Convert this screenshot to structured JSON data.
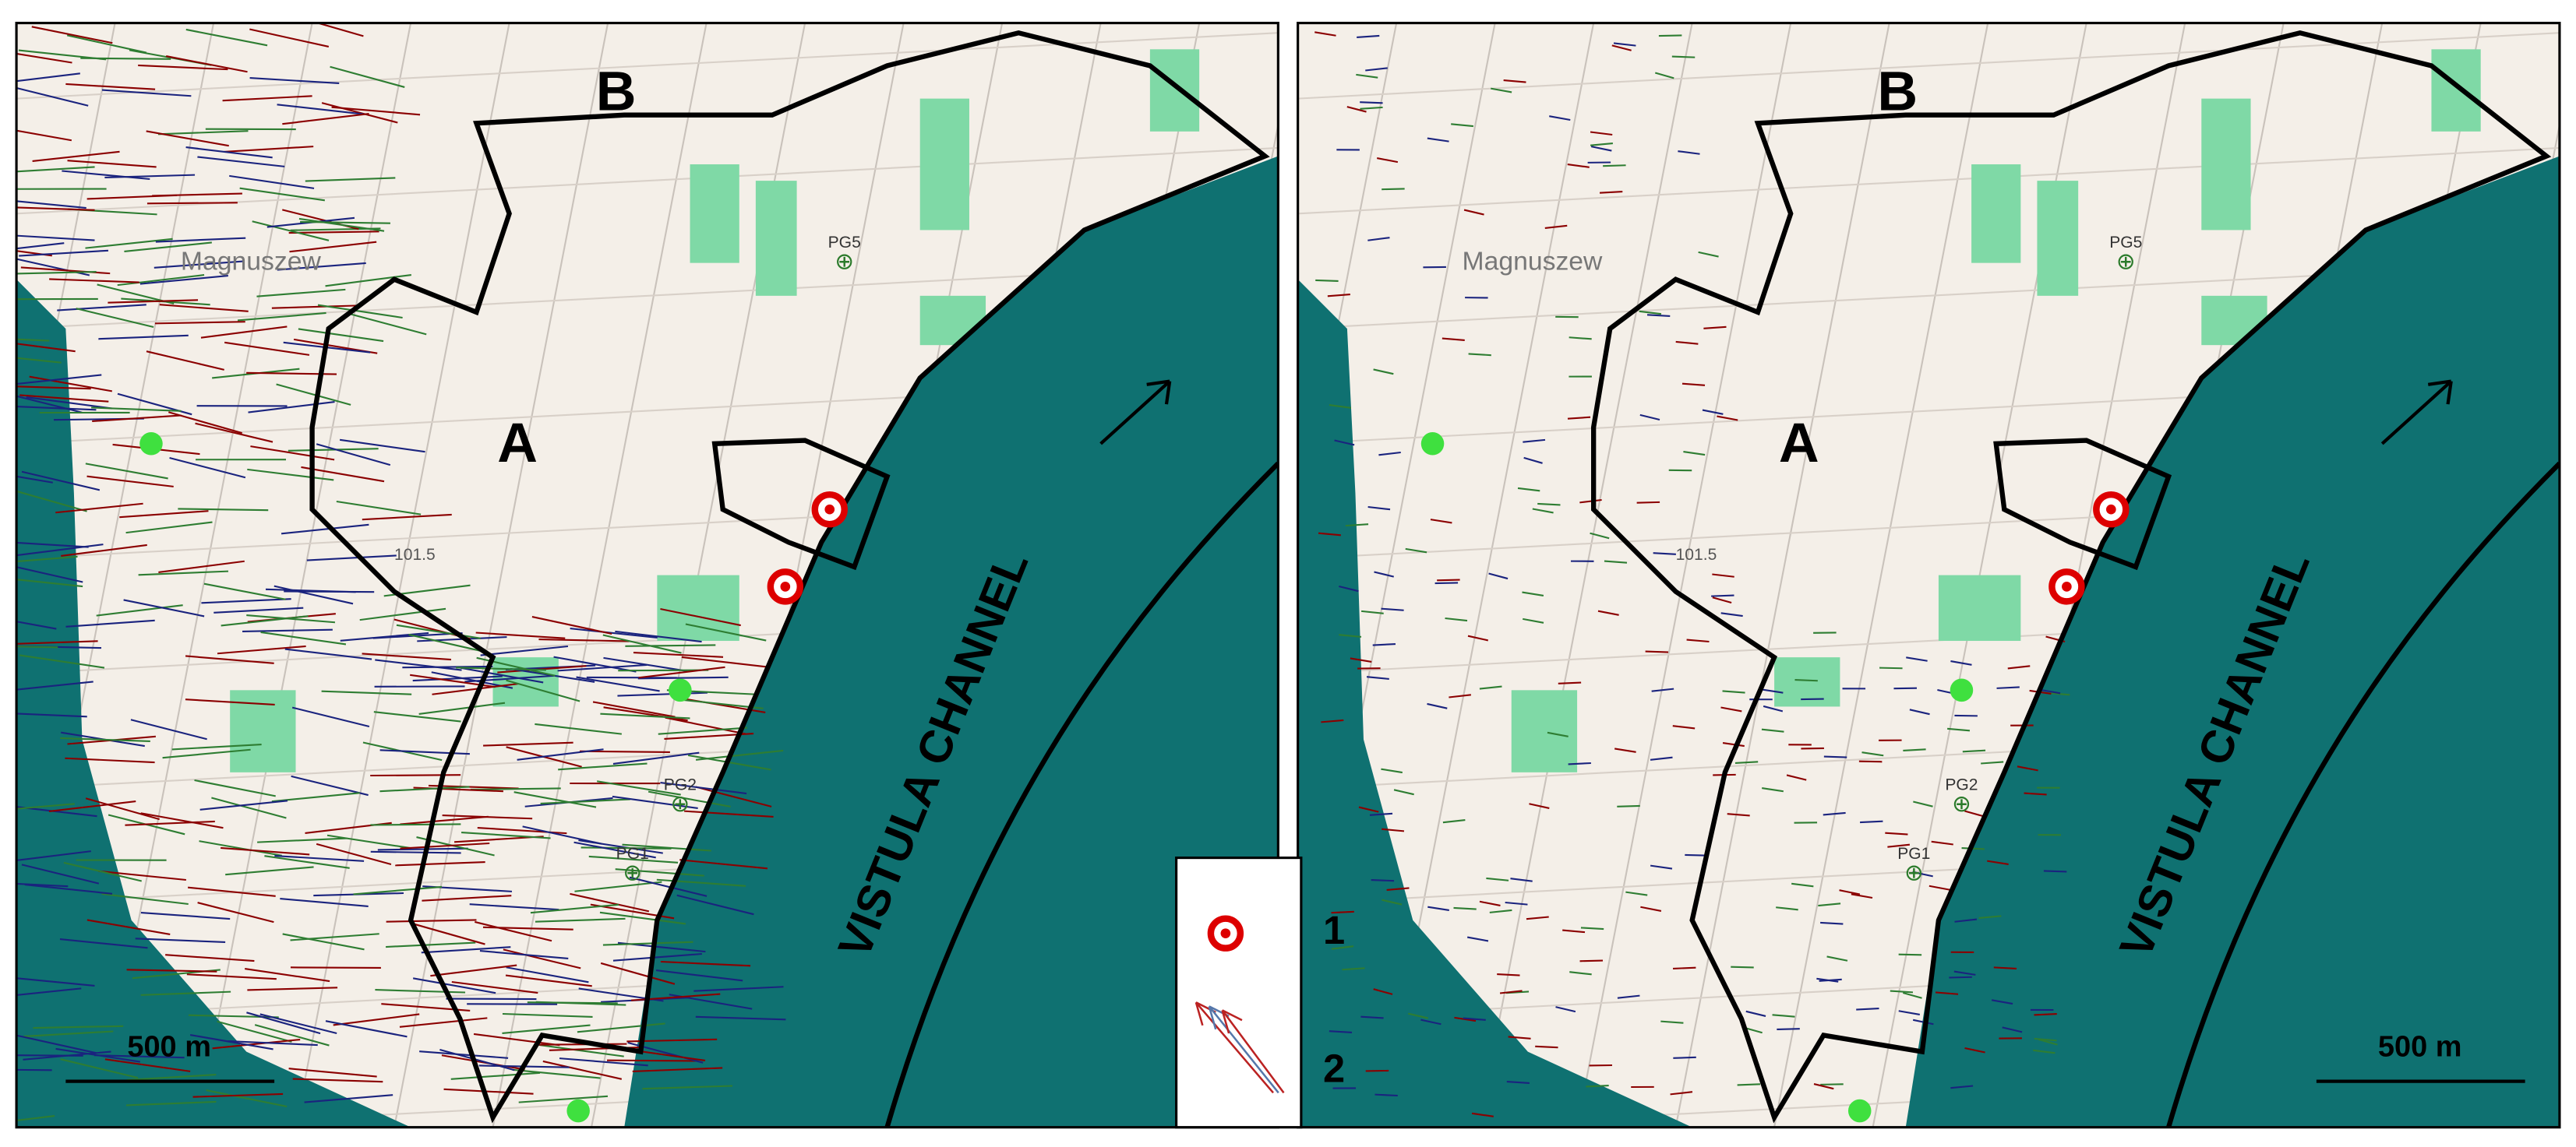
{
  "panels": [
    {
      "label_a": "A",
      "label_b": "B",
      "channel": "VISTULA CHANNEL",
      "scale": "500 m",
      "town": "Magnuszew",
      "elevation": "101.5",
      "wells": [
        "PG5",
        "PG2",
        "PG1"
      ]
    },
    {
      "label_a": "A",
      "label_b": "B",
      "channel": "VISTULA CHANNEL",
      "scale": "500 m",
      "town": "Magnuszew",
      "elevation": "101.5",
      "wells": [
        "PG5",
        "PG2",
        "PG1"
      ]
    }
  ],
  "legend": [
    {
      "key": "1"
    },
    {
      "key": "2"
    }
  ]
}
